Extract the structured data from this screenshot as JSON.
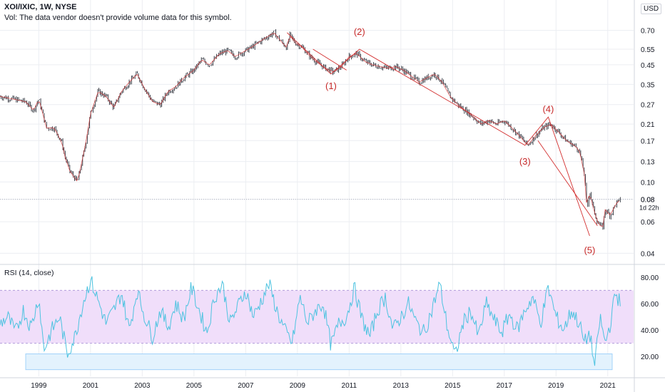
{
  "header": {
    "symbol": "XOI/IXIC, 1W, NYSE",
    "volume_note": "Vol: The data vendor doesn't provide volume data for this symbol.",
    "currency": "USD",
    "last_price": "0.08",
    "countdown": "1d 22h",
    "rsi_label": "RSI (14, close)"
  },
  "colors": {
    "candle": "#131722",
    "red_line": "#d32f2f",
    "wave_label": "#c62828",
    "rsi_line": "#4dc3e0",
    "rsi_band": "#f0defa",
    "oversold_zone": "#e3f2fd",
    "axis_text": "#131722",
    "grid": "#eceef2"
  },
  "chart_data": [
    {
      "type": "line",
      "name": "price",
      "scale": "log",
      "ylim": [
        0.035,
        0.8
      ],
      "xlim": [
        1997.5,
        2022.0
      ],
      "y_ticks": [
        "0.70",
        "0.55",
        "0.45",
        "0.35",
        "0.27",
        "0.21",
        "0.17",
        "0.13",
        "0.10",
        "0.08",
        "0.06",
        "0.04"
      ],
      "x_ticks": [
        "1999",
        "2001",
        "2003",
        "2005",
        "2007",
        "2009",
        "2011",
        "2013",
        "2015",
        "2017",
        "2019",
        "2021"
      ],
      "series": [
        {
          "x": [
            1997.5,
            1998.0,
            1998.5,
            1998.8,
            1999.0,
            1999.3,
            1999.6,
            1999.9,
            2000.0,
            2000.2,
            2000.5,
            2000.8,
            2001.0,
            2001.3,
            2001.6,
            2001.9,
            2002.2,
            2002.5,
            2002.8,
            2003.1,
            2003.4,
            2003.7,
            2004.0,
            2004.3,
            2004.6,
            2005.0,
            2005.3,
            2005.6,
            2006.0,
            2006.3,
            2006.6,
            2006.9,
            2007.2,
            2007.5,
            2007.8,
            2008.1,
            2008.4,
            2008.6,
            2008.7,
            2008.9,
            2009.2,
            2009.5,
            2009.8,
            2010.1,
            2010.4,
            2010.7,
            2011.0,
            2011.3,
            2011.6,
            2011.9,
            2012.2,
            2012.5,
            2012.8,
            2013.1,
            2013.4,
            2013.7,
            2014.0,
            2014.3,
            2014.6,
            2014.9,
            2015.2,
            2015.5,
            2015.8,
            2016.1,
            2016.4,
            2016.7,
            2017.0,
            2017.3,
            2017.6,
            2017.9,
            2018.2,
            2018.5,
            2018.8,
            2019.1,
            2019.4,
            2019.7,
            2019.9,
            2020.1,
            2020.2,
            2020.3,
            2020.4,
            2020.6,
            2020.8,
            2020.9,
            2021.1,
            2021.3,
            2021.5
          ],
          "y": [
            0.3,
            0.29,
            0.28,
            0.25,
            0.29,
            0.2,
            0.2,
            0.165,
            0.14,
            0.115,
            0.1,
            0.16,
            0.24,
            0.32,
            0.3,
            0.26,
            0.32,
            0.36,
            0.4,
            0.33,
            0.28,
            0.27,
            0.32,
            0.34,
            0.38,
            0.42,
            0.48,
            0.45,
            0.52,
            0.54,
            0.5,
            0.53,
            0.56,
            0.6,
            0.64,
            0.68,
            0.6,
            0.56,
            0.66,
            0.6,
            0.56,
            0.5,
            0.46,
            0.43,
            0.41,
            0.44,
            0.5,
            0.52,
            0.47,
            0.45,
            0.44,
            0.43,
            0.44,
            0.42,
            0.39,
            0.36,
            0.38,
            0.4,
            0.36,
            0.3,
            0.27,
            0.25,
            0.23,
            0.21,
            0.22,
            0.21,
            0.22,
            0.2,
            0.18,
            0.16,
            0.18,
            0.2,
            0.21,
            0.19,
            0.17,
            0.16,
            0.15,
            0.11,
            0.07,
            0.09,
            0.075,
            0.06,
            0.055,
            0.07,
            0.065,
            0.075,
            0.08
          ]
        }
      ],
      "wave_labels": [
        {
          "label": "(1)",
          "x": 2010.3,
          "y": 0.33
        },
        {
          "label": "(2)",
          "x": 2011.4,
          "y": 0.66
        },
        {
          "label": "(3)",
          "x": 2017.8,
          "y": 0.125
        },
        {
          "label": "(4)",
          "x": 2018.7,
          "y": 0.245
        },
        {
          "label": "(5)",
          "x": 2020.3,
          "y": 0.04
        }
      ],
      "wave_lines": [
        [
          [
            2008.6,
            0.68
          ],
          [
            2010.3,
            0.4
          ],
          [
            2011.4,
            0.55
          ],
          [
            2017.8,
            0.16
          ],
          [
            2018.7,
            0.23
          ],
          [
            2020.3,
            0.05
          ]
        ],
        [
          [
            2009.6,
            0.55
          ],
          [
            2010.9,
            0.42
          ]
        ],
        [
          [
            2018.3,
            0.17
          ],
          [
            2020.6,
            0.057
          ]
        ]
      ]
    },
    {
      "type": "line",
      "name": "RSI",
      "ylim": [
        5,
        88
      ],
      "y_ticks": [
        "80.00",
        "60.00",
        "40.00",
        "20.00"
      ],
      "overbought": 70,
      "oversold": 30,
      "oversold_zone": [
        10,
        22
      ],
      "series": [
        {
          "name": "RSI (14, close)",
          "x": [
            1997.5,
            1997.8,
            1998.1,
            1998.4,
            1998.7,
            1999.0,
            1999.2,
            1999.5,
            1999.8,
            2000.1,
            2000.4,
            2000.7,
            2001.0,
            2001.3,
            2001.6,
            2001.9,
            2002.2,
            2002.5,
            2002.8,
            2003.1,
            2003.4,
            2003.7,
            2004.0,
            2004.3,
            2004.6,
            2004.9,
            2005.2,
            2005.5,
            2005.8,
            2006.1,
            2006.4,
            2006.7,
            2007.0,
            2007.3,
            2007.6,
            2007.9,
            2008.2,
            2008.5,
            2008.8,
            2009.1,
            2009.4,
            2009.7,
            2010.0,
            2010.3,
            2010.6,
            2010.9,
            2011.2,
            2011.5,
            2011.8,
            2012.1,
            2012.4,
            2012.7,
            2013.0,
            2013.3,
            2013.6,
            2013.9,
            2014.2,
            2014.5,
            2014.8,
            2015.1,
            2015.4,
            2015.7,
            2016.0,
            2016.3,
            2016.6,
            2016.9,
            2017.2,
            2017.5,
            2017.8,
            2018.1,
            2018.4,
            2018.7,
            2019.0,
            2019.3,
            2019.6,
            2019.9,
            2020.1,
            2020.3,
            2020.5,
            2020.7,
            2020.9,
            2021.1,
            2021.3,
            2021.5
          ],
          "y": [
            45,
            50,
            38,
            55,
            42,
            65,
            25,
            40,
            50,
            22,
            35,
            60,
            78,
            62,
            45,
            55,
            68,
            40,
            70,
            50,
            35,
            55,
            42,
            60,
            48,
            72,
            55,
            38,
            65,
            75,
            45,
            58,
            70,
            50,
            62,
            75,
            55,
            40,
            30,
            65,
            45,
            55,
            60,
            28,
            45,
            50,
            72,
            48,
            35,
            55,
            65,
            40,
            50,
            60,
            45,
            38,
            55,
            75,
            42,
            20,
            45,
            55,
            35,
            60,
            48,
            38,
            52,
            40,
            55,
            65,
            45,
            72,
            50,
            40,
            55,
            45,
            30,
            38,
            12,
            50,
            30,
            45,
            68,
            60
          ]
        }
      ]
    }
  ]
}
